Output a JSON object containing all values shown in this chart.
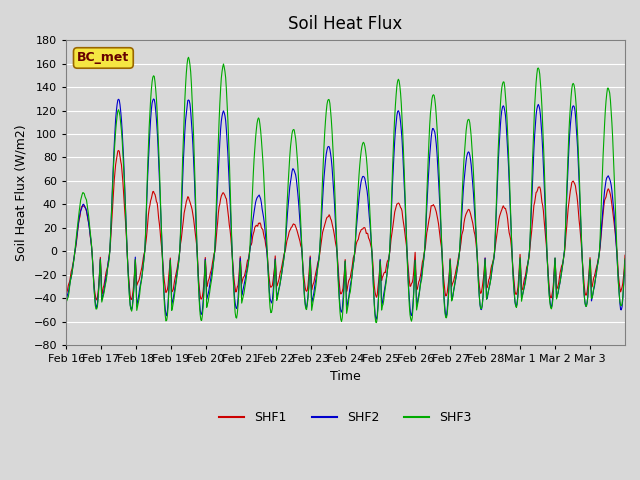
{
  "title": "Soil Heat Flux",
  "ylabel": "Soil Heat Flux (W/m2)",
  "xlabel": "Time",
  "ylim": [
    -80,
    180
  ],
  "yticks": [
    -80,
    -60,
    -40,
    -20,
    0,
    20,
    40,
    60,
    80,
    100,
    120,
    140,
    160,
    180
  ],
  "xtick_labels": [
    "Feb 16",
    "Feb 17",
    "Feb 18",
    "Feb 19",
    "Feb 20",
    "Feb 21",
    "Feb 22",
    "Feb 23",
    "Feb 24",
    "Feb 25",
    "Feb 26",
    "Feb 27",
    "Feb 28",
    "Mar 1",
    "Mar 2",
    "Mar 3"
  ],
  "annotation": "BC_met",
  "line_colors": {
    "SHF1": "#cc0000",
    "SHF2": "#0000cc",
    "SHF3": "#00aa00"
  },
  "background_color": "#d8d8d8",
  "n_days": 16,
  "points_per_day": 48,
  "day_amplitudes_shf1": [
    40,
    85,
    50,
    45,
    50,
    25,
    22,
    30,
    20,
    42,
    40,
    35,
    38,
    55,
    60,
    53
  ],
  "day_amplitudes_shf2": [
    40,
    130,
    130,
    130,
    120,
    48,
    70,
    90,
    65,
    120,
    105,
    85,
    125,
    125,
    125,
    65
  ],
  "day_amplitudes_shf3": [
    50,
    120,
    150,
    165,
    160,
    113,
    104,
    130,
    93,
    146,
    135,
    113,
    145,
    157,
    144,
    140
  ],
  "night_min_shf1": [
    -42,
    -42,
    -35,
    -42,
    -35,
    -32,
    -35,
    -38,
    -40,
    -30,
    -38,
    -35,
    -38,
    -40,
    -38,
    -35
  ],
  "night_min_shf2": [
    -48,
    -50,
    -55,
    -55,
    -50,
    -45,
    -48,
    -52,
    -58,
    -55,
    -55,
    -50,
    -48,
    -48,
    -48,
    -50
  ],
  "night_min_shf3": [
    -50,
    -52,
    -60,
    -60,
    -58,
    -52,
    -50,
    -60,
    -62,
    -60,
    -58,
    -50,
    -48,
    -50,
    -48,
    -48
  ]
}
